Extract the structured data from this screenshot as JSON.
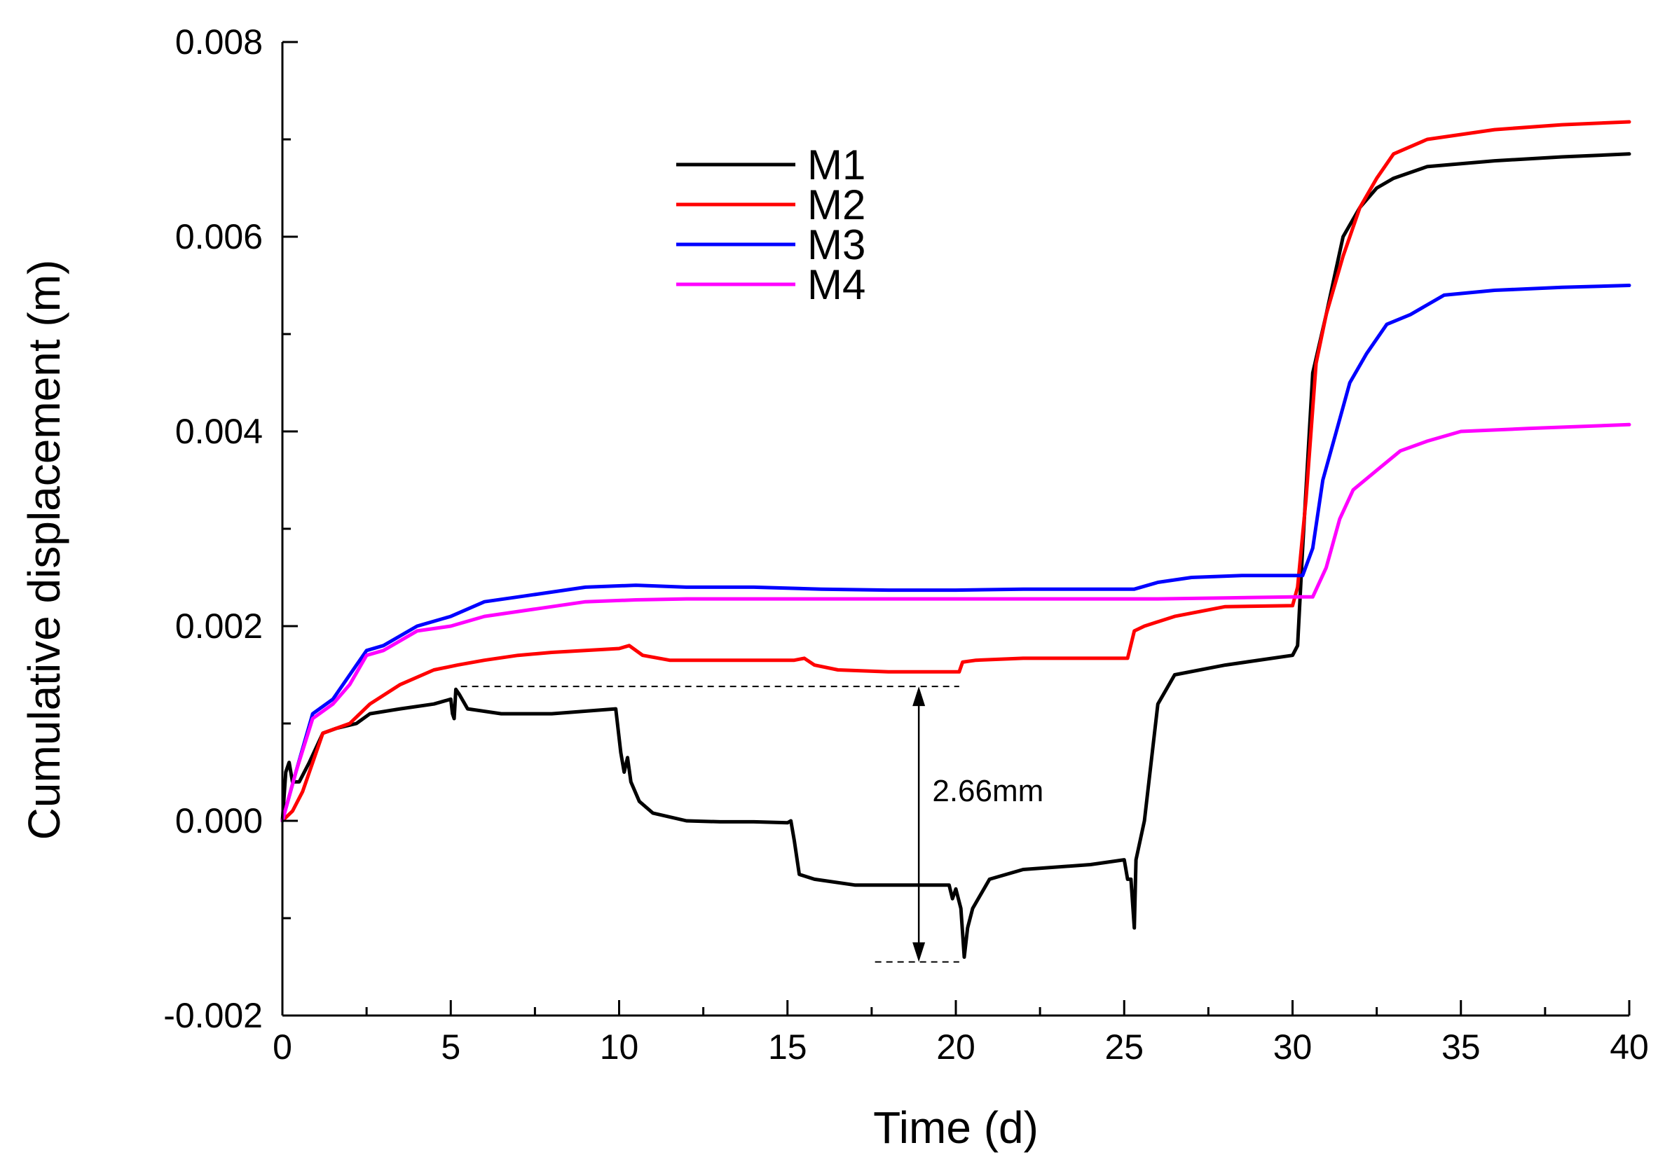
{
  "chart_data": {
    "type": "line",
    "title": "",
    "xlabel": "Time (d)",
    "ylabel": "Cumulative displacement (m)",
    "xlim": [
      0,
      40
    ],
    "ylim": [
      -0.002,
      0.008
    ],
    "x_ticks": [
      0,
      5,
      10,
      15,
      20,
      25,
      30,
      35,
      40
    ],
    "x_tick_labels": [
      "0",
      "5",
      "10",
      "15",
      "20",
      "25",
      "30",
      "35",
      "40"
    ],
    "y_ticks": [
      -0.002,
      0.0,
      0.002,
      0.004,
      0.006,
      0.008
    ],
    "y_tick_labels": [
      "-0.002",
      "0.000",
      "0.002",
      "0.004",
      "0.006",
      "0.008"
    ],
    "grid": false,
    "legend_position": "upper-left",
    "series": [
      {
        "name": "M1",
        "color": "#000000",
        "points": [
          [
            0,
            0
          ],
          [
            0.1,
            0.0005
          ],
          [
            0.2,
            0.0006
          ],
          [
            0.3,
            0.0004
          ],
          [
            0.5,
            0.0004
          ],
          [
            0.8,
            0.0006
          ],
          [
            1.2,
            0.0009
          ],
          [
            1.6,
            0.00095
          ],
          [
            2.2,
            0.001
          ],
          [
            2.6,
            0.0011
          ],
          [
            3.5,
            0.00115
          ],
          [
            4.5,
            0.0012
          ],
          [
            5.0,
            0.00125
          ],
          [
            5.05,
            0.0011
          ],
          [
            5.1,
            0.00105
          ],
          [
            5.15,
            0.00135
          ],
          [
            5.25,
            0.0013
          ],
          [
            5.5,
            0.00115
          ],
          [
            6.5,
            0.0011
          ],
          [
            8,
            0.0011
          ],
          [
            9.9,
            0.00115
          ],
          [
            10.05,
            0.0007
          ],
          [
            10.15,
            0.0005
          ],
          [
            10.25,
            0.00065
          ],
          [
            10.35,
            0.0004
          ],
          [
            10.6,
            0.0002
          ],
          [
            11,
            8e-05
          ],
          [
            12,
            0.0
          ],
          [
            13,
            -1e-05
          ],
          [
            14,
            -1e-05
          ],
          [
            15,
            -2e-05
          ],
          [
            15.1,
            0.0
          ],
          [
            15.2,
            -0.0002
          ],
          [
            15.35,
            -0.00055
          ],
          [
            15.8,
            -0.0006
          ],
          [
            17,
            -0.00066
          ],
          [
            19.8,
            -0.00066
          ],
          [
            19.9,
            -0.0008
          ],
          [
            20.0,
            -0.0007
          ],
          [
            20.15,
            -0.0009
          ],
          [
            20.25,
            -0.0014
          ],
          [
            20.35,
            -0.0011
          ],
          [
            20.5,
            -0.0009
          ],
          [
            21,
            -0.0006
          ],
          [
            22,
            -0.0005
          ],
          [
            24,
            -0.00045
          ],
          [
            25.0,
            -0.0004
          ],
          [
            25.1,
            -0.0006
          ],
          [
            25.2,
            -0.0006
          ],
          [
            25.3,
            -0.0011
          ],
          [
            25.35,
            -0.0004
          ],
          [
            25.6,
            0.0
          ],
          [
            26.0,
            0.0012
          ],
          [
            26.5,
            0.0015
          ],
          [
            28,
            0.0016
          ],
          [
            30,
            0.0017
          ],
          [
            30.15,
            0.0018
          ],
          [
            30.3,
            0.0028
          ],
          [
            30.6,
            0.0046
          ],
          [
            31,
            0.0052
          ],
          [
            31.5,
            0.006
          ],
          [
            32,
            0.0063
          ],
          [
            32.5,
            0.0065
          ],
          [
            33,
            0.0066
          ],
          [
            34,
            0.00672
          ],
          [
            36,
            0.00678
          ],
          [
            38,
            0.00682
          ],
          [
            40,
            0.00685
          ]
        ]
      },
      {
        "name": "M2",
        "color": "#ff0000",
        "points": [
          [
            0,
            0
          ],
          [
            0.3,
            0.0001
          ],
          [
            0.6,
            0.0003
          ],
          [
            1.2,
            0.0009
          ],
          [
            2,
            0.001
          ],
          [
            2.6,
            0.0012
          ],
          [
            3.5,
            0.0014
          ],
          [
            4.5,
            0.00155
          ],
          [
            5.2,
            0.0016
          ],
          [
            6,
            0.00165
          ],
          [
            7,
            0.0017
          ],
          [
            8,
            0.00173
          ],
          [
            9,
            0.00175
          ],
          [
            10,
            0.00177
          ],
          [
            10.3,
            0.0018
          ],
          [
            10.7,
            0.0017
          ],
          [
            11.5,
            0.00165
          ],
          [
            13,
            0.00165
          ],
          [
            15.2,
            0.00165
          ],
          [
            15.5,
            0.00167
          ],
          [
            15.8,
            0.0016
          ],
          [
            16.5,
            0.00155
          ],
          [
            18,
            0.00153
          ],
          [
            19.5,
            0.00153
          ],
          [
            20.1,
            0.00153
          ],
          [
            20.2,
            0.00163
          ],
          [
            20.6,
            0.00165
          ],
          [
            22,
            0.00167
          ],
          [
            24,
            0.00167
          ],
          [
            25.1,
            0.00167
          ],
          [
            25.3,
            0.00195
          ],
          [
            25.6,
            0.002
          ],
          [
            26.5,
            0.0021
          ],
          [
            28,
            0.0022
          ],
          [
            30,
            0.00221
          ],
          [
            30.15,
            0.0024
          ],
          [
            30.4,
            0.0033
          ],
          [
            30.7,
            0.0047
          ],
          [
            31,
            0.0052
          ],
          [
            31.5,
            0.0058
          ],
          [
            32,
            0.0063
          ],
          [
            32.5,
            0.0066
          ],
          [
            33,
            0.00685
          ],
          [
            34,
            0.007
          ],
          [
            36,
            0.0071
          ],
          [
            38,
            0.00715
          ],
          [
            40,
            0.00718
          ]
        ]
      },
      {
        "name": "M3",
        "color": "#0000ff",
        "points": [
          [
            0,
            0
          ],
          [
            0.4,
            0.0005
          ],
          [
            0.9,
            0.0011
          ],
          [
            1.5,
            0.00125
          ],
          [
            2,
            0.0015
          ],
          [
            2.5,
            0.00175
          ],
          [
            3,
            0.0018
          ],
          [
            4,
            0.002
          ],
          [
            5,
            0.0021
          ],
          [
            6,
            0.00225
          ],
          [
            7,
            0.0023
          ],
          [
            8,
            0.00235
          ],
          [
            9,
            0.0024
          ],
          [
            10.5,
            0.00242
          ],
          [
            12,
            0.0024
          ],
          [
            14,
            0.0024
          ],
          [
            16,
            0.00238
          ],
          [
            18,
            0.00237
          ],
          [
            20,
            0.00237
          ],
          [
            22,
            0.00238
          ],
          [
            24,
            0.00238
          ],
          [
            25.3,
            0.00238
          ],
          [
            26,
            0.00245
          ],
          [
            27,
            0.0025
          ],
          [
            28.5,
            0.00252
          ],
          [
            30.3,
            0.00252
          ],
          [
            30.6,
            0.0028
          ],
          [
            30.9,
            0.0035
          ],
          [
            31.3,
            0.004
          ],
          [
            31.7,
            0.0045
          ],
          [
            32.2,
            0.0048
          ],
          [
            32.8,
            0.0051
          ],
          [
            33.5,
            0.0052
          ],
          [
            34.5,
            0.0054
          ],
          [
            36,
            0.00545
          ],
          [
            38,
            0.00548
          ],
          [
            40,
            0.0055
          ]
        ]
      },
      {
        "name": "M4",
        "color": "#ff00ff",
        "points": [
          [
            0,
            0
          ],
          [
            0.4,
            0.0005
          ],
          [
            0.9,
            0.00105
          ],
          [
            1.5,
            0.0012
          ],
          [
            2,
            0.0014
          ],
          [
            2.5,
            0.0017
          ],
          [
            3,
            0.00175
          ],
          [
            4,
            0.00195
          ],
          [
            5,
            0.002
          ],
          [
            6,
            0.0021
          ],
          [
            7,
            0.00215
          ],
          [
            8,
            0.0022
          ],
          [
            9,
            0.00225
          ],
          [
            10.5,
            0.00227
          ],
          [
            12,
            0.00228
          ],
          [
            14,
            0.00228
          ],
          [
            16,
            0.00228
          ],
          [
            18,
            0.00228
          ],
          [
            20,
            0.00228
          ],
          [
            22,
            0.00228
          ],
          [
            24,
            0.00228
          ],
          [
            26,
            0.00228
          ],
          [
            28,
            0.00229
          ],
          [
            30,
            0.0023
          ],
          [
            30.6,
            0.0023
          ],
          [
            31,
            0.0026
          ],
          [
            31.4,
            0.0031
          ],
          [
            31.8,
            0.0034
          ],
          [
            32.5,
            0.0036
          ],
          [
            33.2,
            0.0038
          ],
          [
            34,
            0.0039
          ],
          [
            35,
            0.004
          ],
          [
            37,
            0.00403
          ],
          [
            40,
            0.00407
          ]
        ]
      }
    ],
    "annotations": [
      {
        "text": "2.66mm",
        "type": "vertical-double-arrow",
        "x": 18.9,
        "y_top": 0.00138,
        "y_bottom": -0.00145,
        "top_dashed_line_x": [
          5.3,
          20.1
        ],
        "bottom_dashed_line_x": [
          17.6,
          20.1
        ],
        "text_x": 19.3,
        "text_y": 0.0002
      }
    ]
  }
}
